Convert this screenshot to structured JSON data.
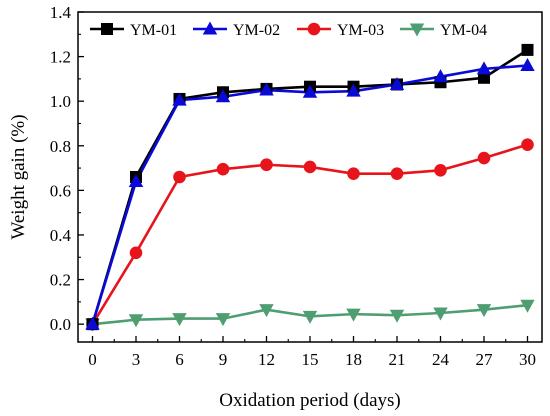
{
  "chart_data": {
    "type": "line",
    "title": "",
    "xlabel": "Oxidation period (days)",
    "ylabel": "Weight gain (%)",
    "xlim": [
      -1,
      31
    ],
    "ylim": [
      -0.08,
      1.4
    ],
    "x": [
      0,
      3,
      6,
      9,
      12,
      15,
      18,
      21,
      24,
      27,
      30
    ],
    "xticks": [
      "0",
      "3",
      "6",
      "9",
      "12",
      "15",
      "18",
      "21",
      "24",
      "27",
      "30"
    ],
    "yticks": [
      "0.0",
      "0.2",
      "0.4",
      "0.6",
      "0.8",
      "1.0",
      "1.2",
      "1.4"
    ],
    "ytick_values": [
      0.0,
      0.2,
      0.4,
      0.6,
      0.8,
      1.0,
      1.2,
      1.4
    ],
    "legend_position": "top",
    "grid": false,
    "series": [
      {
        "name": "YM-01",
        "marker": "square",
        "color": "#000000",
        "values": [
          0.0,
          0.66,
          1.01,
          1.04,
          1.055,
          1.065,
          1.065,
          1.075,
          1.085,
          1.105,
          1.23
        ]
      },
      {
        "name": "YM-02",
        "marker": "triangle-up",
        "color": "#0a0ad8",
        "values": [
          0.0,
          0.64,
          1.005,
          1.02,
          1.05,
          1.04,
          1.045,
          1.075,
          1.11,
          1.145,
          1.16
        ]
      },
      {
        "name": "YM-03",
        "marker": "circle",
        "color": "#e8141c",
        "values": [
          0.0,
          0.32,
          0.66,
          0.695,
          0.715,
          0.705,
          0.675,
          0.675,
          0.69,
          0.745,
          0.805
        ]
      },
      {
        "name": "YM-04",
        "marker": "triangle-down",
        "color": "#4f9e72",
        "values": [
          0.0,
          0.02,
          0.025,
          0.025,
          0.065,
          0.035,
          0.045,
          0.04,
          0.05,
          0.065,
          0.085
        ]
      }
    ]
  }
}
